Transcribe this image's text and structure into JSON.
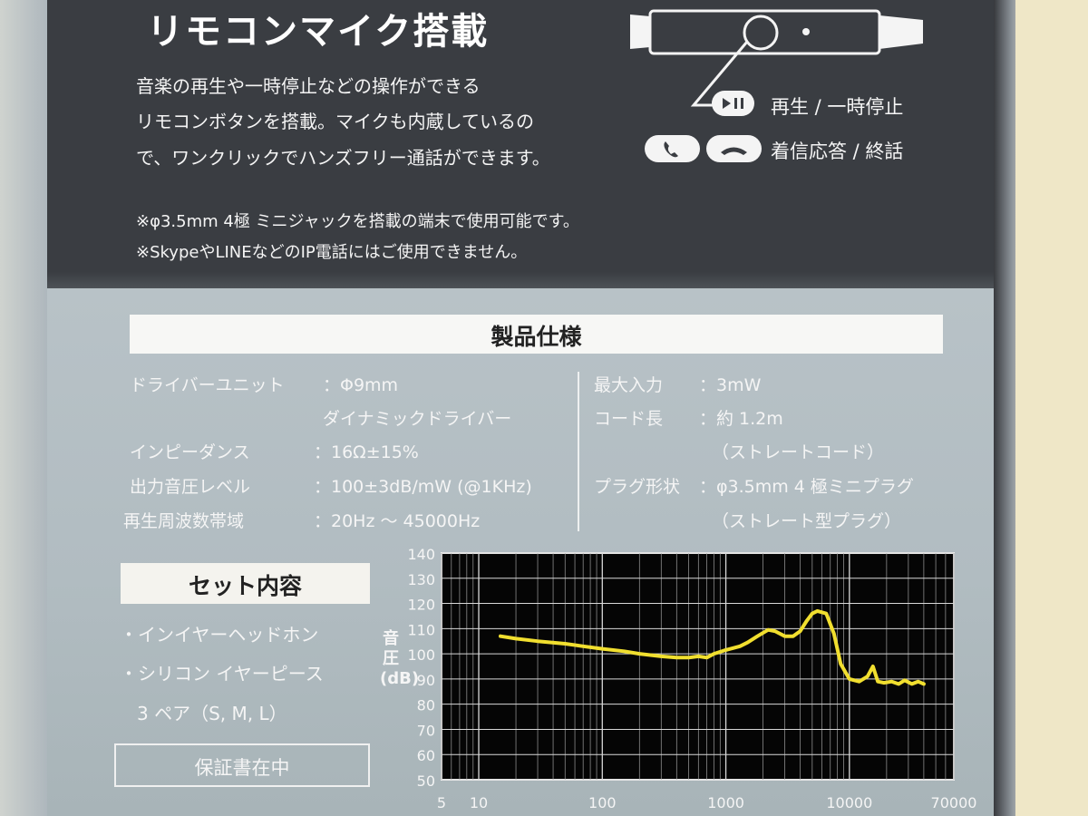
{
  "top": {
    "title": "リモコンマイク搭載",
    "description": [
      "音楽の再生や一時停止などの操作ができる",
      "リモコンボタンを搭載。マイクも内蔵しているの",
      "で、ワンクリックでハンズフリー通話ができます。"
    ],
    "notes": [
      "※φ3.5mm 4極 ミニジャックを搭載の端末で使用可能です。",
      "※SkypeやLINEなどのIP電話にはご使用できません。"
    ],
    "controls": [
      "再生 / 一時停止",
      "着信応答 / 終話"
    ]
  },
  "specs": {
    "title": "製品仕様",
    "left": [
      {
        "label": "ドライバーユニット",
        "value": "：Φ9mm"
      },
      {
        "label": "",
        "value": "ダイナミックドライバー"
      },
      {
        "label": "インピーダンス",
        "value": "：16Ω±15%"
      },
      {
        "label": "出力音圧レベル",
        "value": "：100±3dB/mW (@1KHz)"
      },
      {
        "label": "再生周波数帯域",
        "value": "：20Hz ～ 45000Hz"
      }
    ],
    "right": [
      {
        "label": "最大入力",
        "value": "：3mW"
      },
      {
        "label": "コード長",
        "value": "：約 1.2m"
      },
      {
        "label": "",
        "value": "（ストレートコード）"
      },
      {
        "label": "プラグ形状",
        "value": "：φ3.5mm 4 極ミニプラグ"
      },
      {
        "label": "",
        "value": "（ストレート型プラグ）"
      }
    ]
  },
  "contents": {
    "title": "セット内容",
    "items": [
      "・インイヤーヘッドホン",
      "・シリコン イヤーピース",
      "3 ペア（S, M, L）"
    ],
    "warranty": "保証書在中"
  },
  "chart_data": {
    "type": "line",
    "title": "",
    "xlabel": "",
    "ylabel": "音圧(dB)",
    "x_scale": "log",
    "xlim": [
      5,
      70000
    ],
    "ylim": [
      50,
      140
    ],
    "x_ticks": [
      5,
      10,
      100,
      1000,
      10000,
      70000
    ],
    "y_ticks": [
      50,
      60,
      70,
      80,
      90,
      100,
      110,
      120,
      130,
      140
    ],
    "grid": true,
    "line_color": "#f1df2f",
    "series": [
      {
        "x": [
          15,
          20,
          30,
          50,
          70,
          100,
          150,
          200,
          300,
          400,
          500,
          600,
          700,
          800,
          1000,
          1300,
          1500,
          1800,
          2200,
          2500,
          3000,
          3500,
          4000,
          4500,
          5000,
          5500,
          6500,
          7500,
          8500,
          10000,
          12000,
          14000,
          15500,
          17000,
          19000,
          22000,
          25000,
          28000,
          32000,
          36000,
          40000
        ],
        "y": [
          107,
          106,
          105,
          104,
          103,
          102,
          101,
          100,
          99,
          98.5,
          98.5,
          99,
          98.5,
          100,
          101.5,
          103,
          104.5,
          107,
          109.5,
          109,
          107,
          107,
          109,
          113,
          116,
          117,
          116,
          108,
          96,
          90,
          89,
          91,
          95,
          89,
          88.5,
          89,
          88,
          89.5,
          88,
          89,
          88
        ]
      }
    ]
  }
}
